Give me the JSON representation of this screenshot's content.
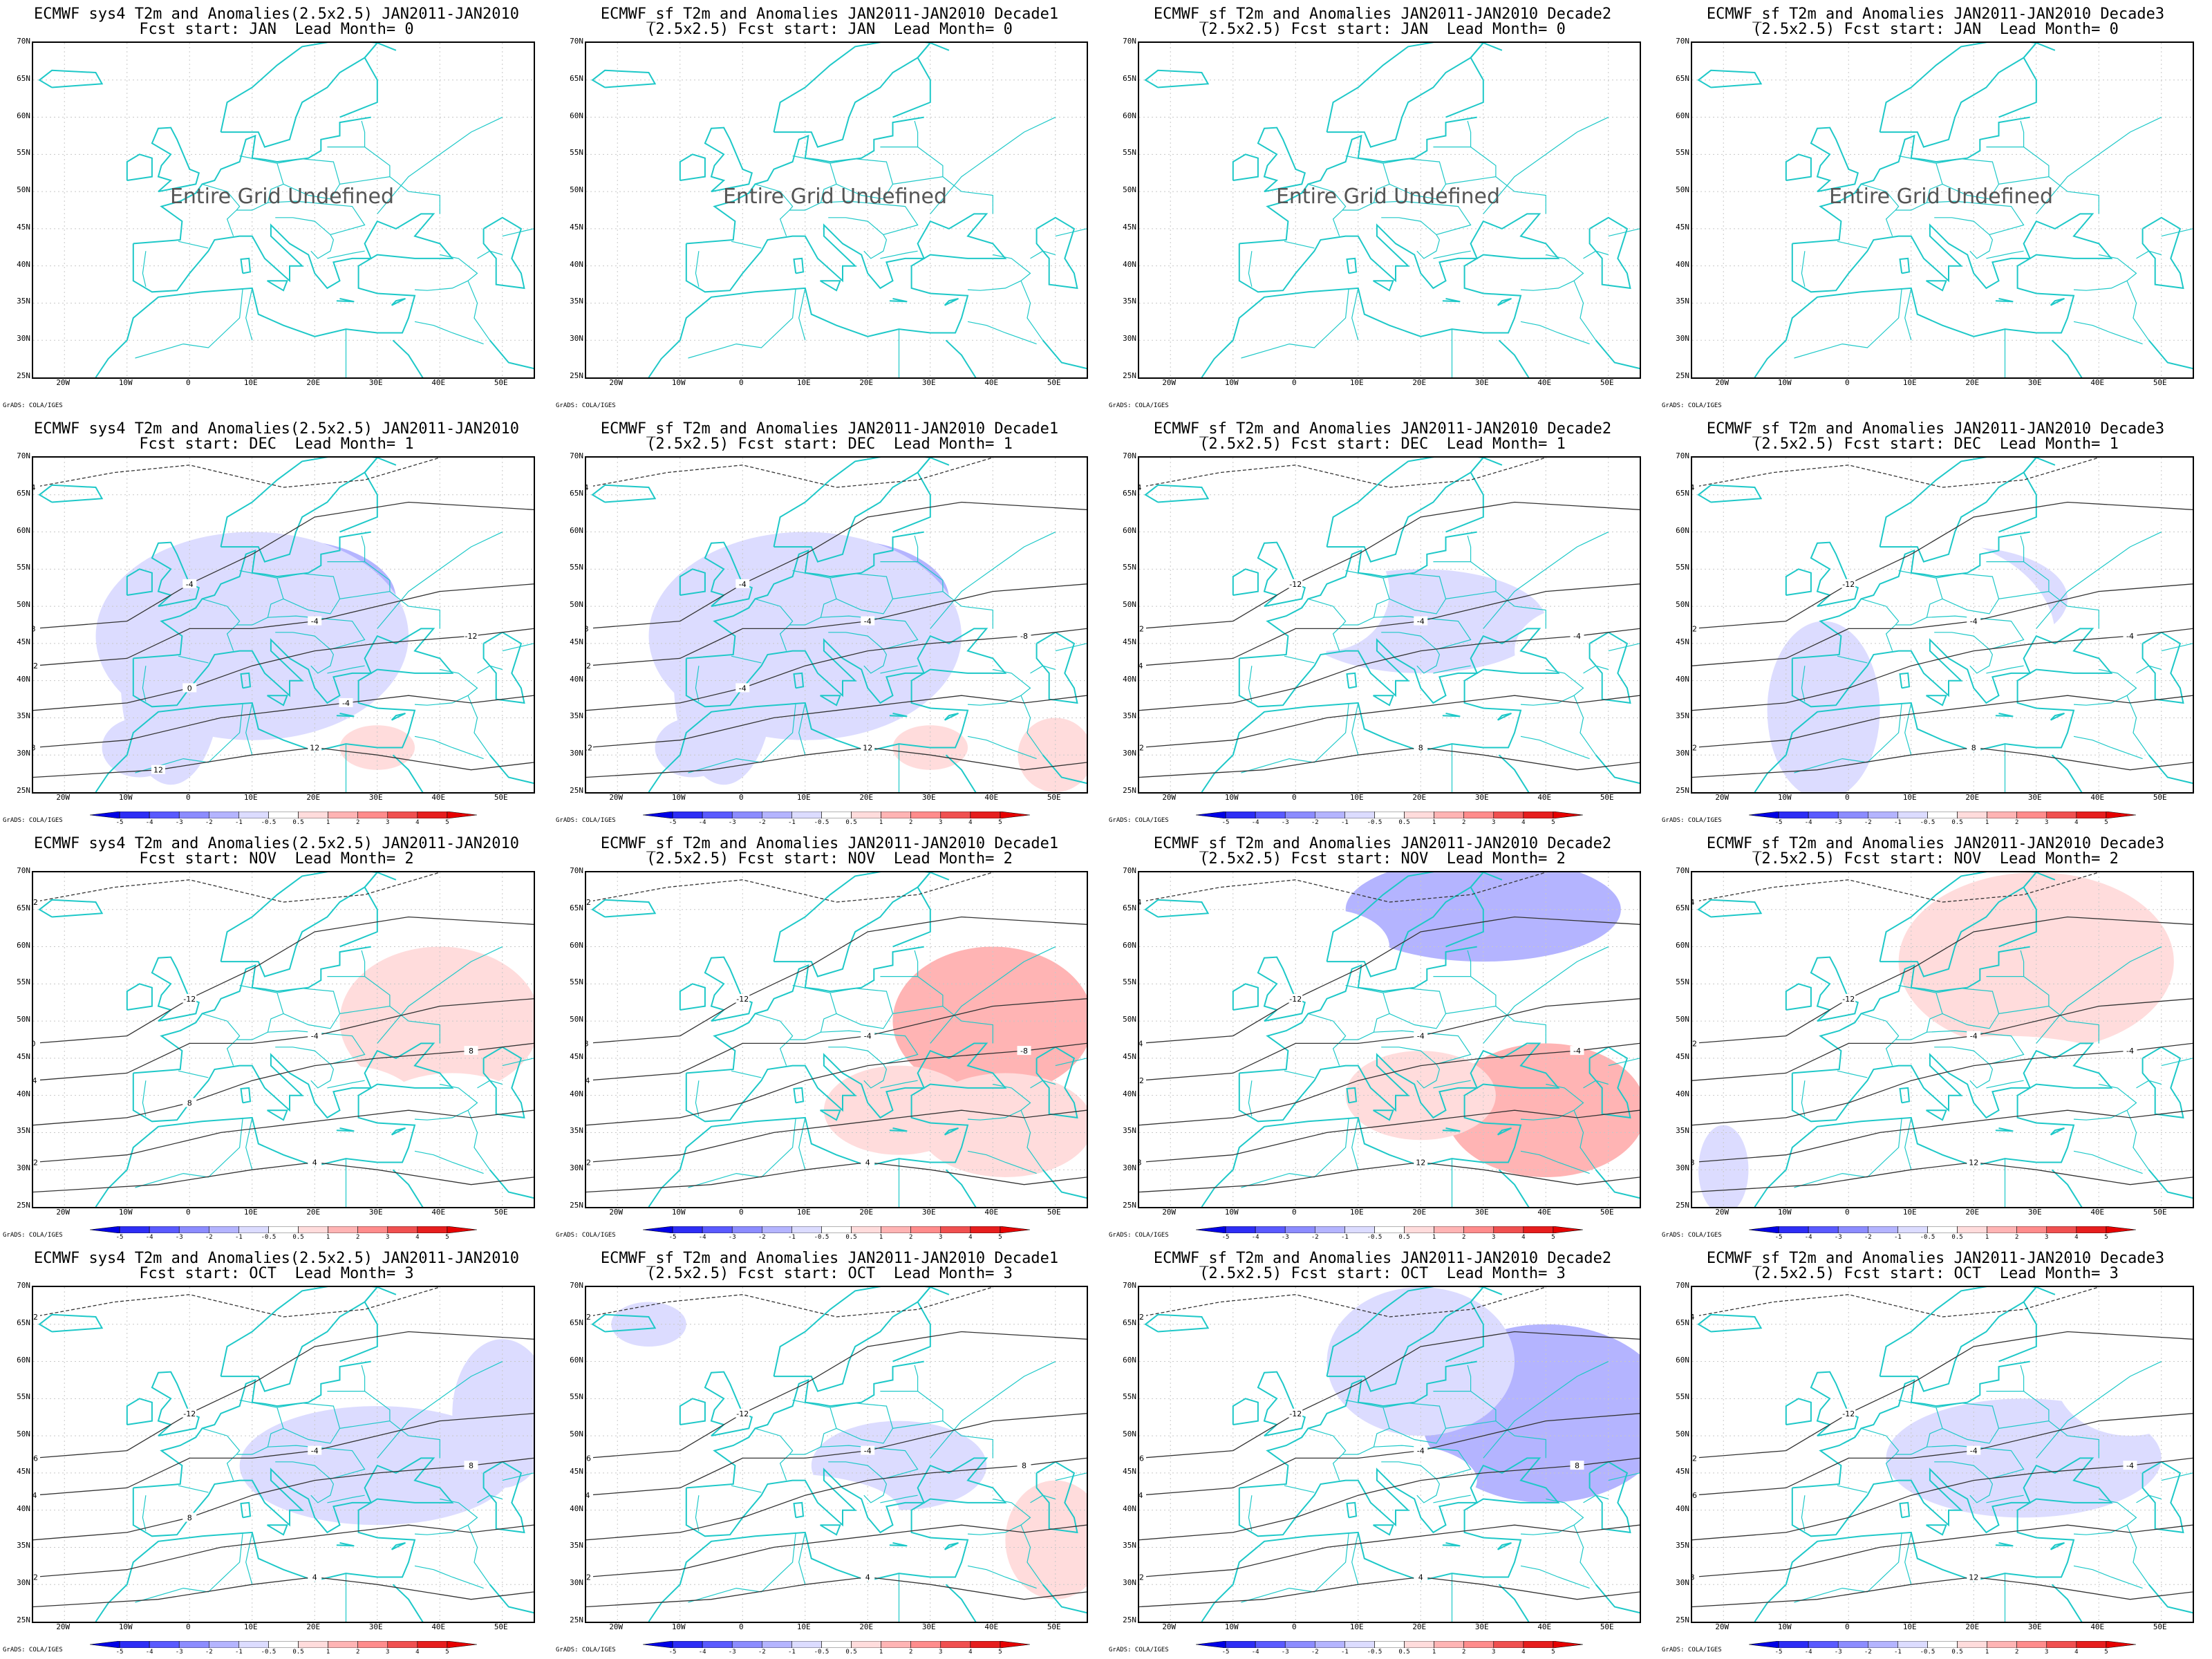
{
  "colors": {
    "coast": "#1ec8c8",
    "contour": "#333333",
    "anom": [
      "#0000e6",
      "#2d2df5",
      "#5a5aff",
      "#8c8cff",
      "#b4b4ff",
      "#dcdcff",
      "#ffffff",
      "#ffdcdc",
      "#ffb4b4",
      "#ff8c8c",
      "#f05050",
      "#e61e1e",
      "#e60000"
    ]
  },
  "axes": {
    "lat_labels": [
      "70N",
      "65N",
      "60N",
      "55N",
      "50N",
      "45N",
      "40N",
      "35N",
      "30N",
      "25N"
    ],
    "lon_labels": [
      "20W",
      "10W",
      "0",
      "10E",
      "20E",
      "30E",
      "40E",
      "50E"
    ]
  },
  "credit": "GrADS: COLA/IGES",
  "colorbar": {
    "labels": [
      "-5",
      "-4",
      "-3",
      "-2",
      "-1",
      "-0.5",
      "0.5",
      "1",
      "2",
      "3",
      "4",
      "5"
    ]
  },
  "undefined_text": "Entire Grid Undefined",
  "panels": [
    {
      "t1": "ECMWF sys4 T2m and Anomalies(2.5x2.5) JAN2011-JAN2010",
      "t2": "Fcst start: JAN  Lead Month= 0",
      "mode": "undefined"
    },
    {
      "t1": "ECMWF_sf T2m and Anomalies JAN2011-JAN2010 Decade1",
      "t2": "(2.5x2.5) Fcst start: JAN  Lead Month= 0",
      "mode": "undefined"
    },
    {
      "t1": "ECMWF_sf T2m and Anomalies JAN2011-JAN2010 Decade2",
      "t2": "(2.5x2.5) Fcst start: JAN  Lead Month= 0",
      "mode": "undefined"
    },
    {
      "t1": "ECMWF_sf T2m and Anomalies JAN2011-JAN2010 Decade3",
      "t2": "(2.5x2.5) Fcst start: JAN  Lead Month= 0",
      "mode": "undefined"
    },
    {
      "t1": "ECMWF sys4 T2m and Anomalies(2.5x2.5) JAN2011-JAN2010",
      "t2": "Fcst start: DEC  Lead Month= 1",
      "mode": "data",
      "anom": "cold",
      "strength": 3,
      "contour_labels": [
        "-4",
        "-4",
        "-12",
        "8",
        "12",
        "4",
        "8",
        "12",
        "0",
        "-4",
        "12"
      ]
    },
    {
      "t1": "ECMWF_sf T2m and Anomalies JAN2011-JAN2010 Decade1",
      "t2": "(2.5x2.5) Fcst start: DEC  Lead Month= 1",
      "mode": "data",
      "anom": "cold",
      "strength": 4,
      "contour_labels": [
        "-4",
        "-4",
        "-8",
        "-12",
        "12",
        "4",
        "8",
        "12",
        "-4"
      ]
    },
    {
      "t1": "ECMWF_sf T2m and Anomalies JAN2011-JAN2010 Decade2",
      "t2": "(2.5x2.5) Fcst start: DEC  Lead Month= 1",
      "mode": "data",
      "anom": "mixedNE",
      "strength": 3,
      "contour_labels": [
        "-12",
        "-4",
        "-4",
        "12",
        "8",
        "4",
        "12",
        "-4"
      ]
    },
    {
      "t1": "ECMWF_sf T2m and Anomalies JAN2011-JAN2010 Decade3",
      "t2": "(2.5x2.5) Fcst start: DEC  Lead Month= 1",
      "mode": "data",
      "anom": "coldwarmN",
      "strength": 3,
      "contour_labels": [
        "-12",
        "-4",
        "-4",
        "12",
        "8",
        "4",
        "12"
      ]
    },
    {
      "t1": "ECMWF sys4 T2m and Anomalies(2.5x2.5) JAN2011-JAN2010",
      "t2": "Fcst start: NOV  Lead Month= 2",
      "mode": "data",
      "anom": "warmE",
      "strength": 2,
      "contour_labels": [
        "-12",
        "-4",
        "8",
        "12",
        "4",
        "12",
        "0",
        "-4",
        "8"
      ]
    },
    {
      "t1": "ECMWF_sf T2m and Anomalies JAN2011-JAN2010 Decade1",
      "t2": "(2.5x2.5) Fcst start: NOV  Lead Month= 2",
      "mode": "data",
      "anom": "warmE",
      "strength": 4,
      "contour_labels": [
        "-12",
        "-4",
        "-8",
        "12",
        "4",
        "12",
        "8",
        "-4"
      ]
    },
    {
      "t1": "ECMWF_sf T2m and Anomalies JAN2011-JAN2010 Decade2",
      "t2": "(2.5x2.5) Fcst start: NOV  Lead Month= 2",
      "mode": "data",
      "anom": "coldNwarmS",
      "strength": 4,
      "contour_labels": [
        "-12",
        "-4",
        "-4",
        "8",
        "12",
        "4",
        "-4",
        "12"
      ]
    },
    {
      "t1": "ECMWF_sf T2m and Anomalies JAN2011-JAN2010 Decade3",
      "t2": "(2.5x2.5) Fcst start: NOV  Lead Month= 2",
      "mode": "data",
      "anom": "warmAll",
      "strength": 3,
      "contour_labels": [
        "-12",
        "-4",
        "-4",
        "8",
        "12",
        "4",
        "12"
      ]
    },
    {
      "t1": "ECMWF sys4 T2m and Anomalies(2.5x2.5) JAN2011-JAN2010",
      "t2": "Fcst start: OCT  Lead Month= 3",
      "mode": "data",
      "anom": "coldE",
      "strength": 3,
      "contour_labels": [
        "-12",
        "-4",
        "8",
        "12",
        "4",
        "12",
        "16",
        "-4",
        "8"
      ]
    },
    {
      "t1": "ECMWF_sf T2m and Anomalies JAN2011-JAN2010 Decade1",
      "t2": "(2.5x2.5) Fcst start: OCT  Lead Month= 3",
      "mode": "data",
      "anom": "mixedS",
      "strength": 3,
      "contour_labels": [
        "-12",
        "-4",
        "8",
        "12",
        "4",
        "12",
        "16",
        "-4"
      ]
    },
    {
      "t1": "ECMWF_sf T2m and Anomalies JAN2011-JAN2010 Decade2",
      "t2": "(2.5x2.5) Fcst start: OCT  Lead Month= 3",
      "mode": "data",
      "anom": "coldNE",
      "strength": 4,
      "contour_labels": [
        "-12",
        "-4",
        "8",
        "12",
        "4",
        "12",
        "16",
        "-4"
      ]
    },
    {
      "t1": "ECMWF_sf T2m and Anomalies JAN2011-JAN2010 Decade3",
      "t2": "(2.5x2.5) Fcst start: OCT  Lead Month= 3",
      "mode": "data",
      "anom": "coldE2",
      "strength": 3,
      "contour_labels": [
        "-12",
        "-4",
        "-4",
        "8",
        "12",
        "4",
        "12",
        "16"
      ]
    }
  ]
}
